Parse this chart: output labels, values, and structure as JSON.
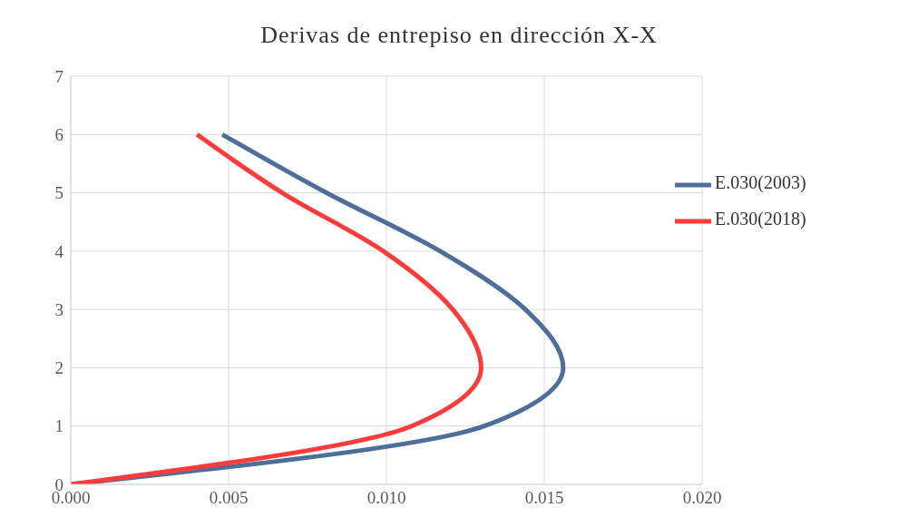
{
  "chart_data": {
    "type": "line",
    "title": "Derivas de entrepiso en dirección X-X",
    "series": [
      {
        "name": "E.030(2003)",
        "color": "#4e6e9a",
        "x": [
          0,
          0.0131,
          0.0156,
          0.0144,
          0.0117,
          0.0081,
          0.0048
        ],
        "values": [
          0,
          1,
          2,
          3,
          4,
          5,
          6
        ]
      },
      {
        "name": "E.030(2018)",
        "color": "#ff3b3b",
        "x": [
          0,
          0.0108,
          0.013,
          0.0121,
          0.0099,
          0.0067,
          0.004
        ],
        "values": [
          0,
          1,
          2,
          3,
          4,
          5,
          6
        ]
      }
    ],
    "xlim": [
      0,
      0.02
    ],
    "xticks": [
      {
        "value": 0,
        "label": "0.000"
      },
      {
        "value": 0.005,
        "label": "0.005"
      },
      {
        "value": 0.01,
        "label": "0.010"
      },
      {
        "value": 0.015,
        "label": "0.015"
      },
      {
        "value": 0.02,
        "label": "0.020"
      }
    ],
    "ylim": [
      0,
      7
    ],
    "yticks": [
      0,
      1,
      2,
      3,
      4,
      5,
      6,
      7
    ],
    "grid": true,
    "legend": "top right",
    "marker": "none",
    "line_style": "solid"
  }
}
